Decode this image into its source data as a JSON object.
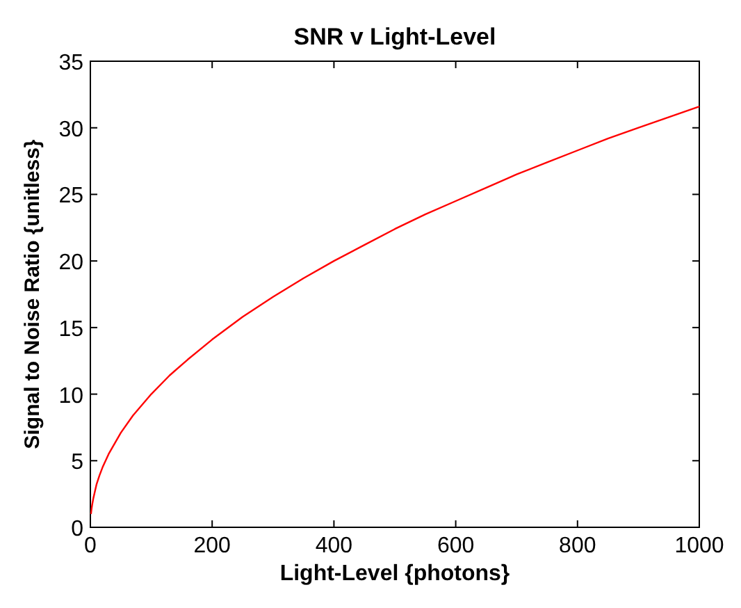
{
  "chart_data": {
    "type": "line",
    "title": "SNR v Light-Level",
    "xlabel": "Light-Level {photons}",
    "ylabel": "Signal to Noise Ratio {unitless}",
    "x": [
      1,
      2,
      3,
      5,
      7,
      10,
      15,
      20,
      30,
      40,
      50,
      70,
      100,
      130,
      160,
      200,
      250,
      300,
      350,
      400,
      450,
      500,
      550,
      600,
      650,
      700,
      750,
      800,
      850,
      900,
      950,
      1000
    ],
    "series": [
      {
        "color": "#ff0000",
        "values": [
          1.0,
          1.4,
          1.7,
          2.2,
          2.6,
          3.2,
          3.9,
          4.5,
          5.5,
          6.3,
          7.1,
          8.4,
          10.0,
          11.4,
          12.6,
          14.1,
          15.8,
          17.3,
          18.7,
          20.0,
          21.2,
          22.4,
          23.5,
          24.5,
          25.5,
          26.5,
          27.4,
          28.3,
          29.2,
          30.0,
          30.8,
          31.6
        ]
      }
    ],
    "xlim": [
      0,
      1000
    ],
    "ylim": [
      0,
      35
    ],
    "xticks": [
      0,
      200,
      400,
      600,
      800,
      1000
    ],
    "yticks": [
      0,
      5,
      10,
      15,
      20,
      25,
      30,
      35
    ],
    "grid": false,
    "marker": "none",
    "line_style": "solid"
  }
}
